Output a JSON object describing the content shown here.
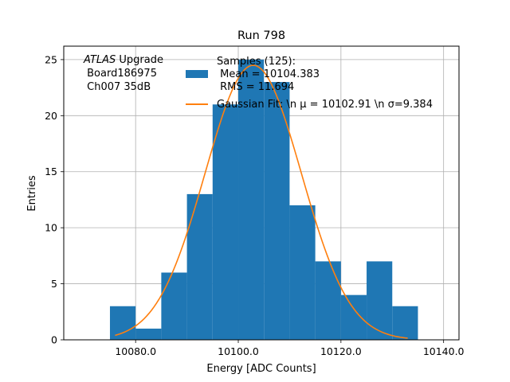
{
  "chart_data": {
    "type": "bar",
    "title": "Run 798",
    "xlabel": "Energy [ADC Counts]",
    "ylabel": "Entries",
    "xlim": [
      10066,
      10143
    ],
    "ylim": [
      0,
      26.2
    ],
    "xticks": [
      10080,
      10100,
      10120,
      10140
    ],
    "xtick_labels": [
      "10080.0",
      "10100.0",
      "10120.0",
      "10140.0"
    ],
    "yticks": [
      0,
      5,
      10,
      15,
      20,
      25
    ],
    "ytick_labels": [
      "0",
      "5",
      "10",
      "15",
      "20",
      "25"
    ],
    "grid": true,
    "legend_position": "top-right",
    "histogram": {
      "bin_edges": [
        10075,
        10080,
        10085,
        10090,
        10095,
        10100,
        10105,
        10110,
        10115,
        10120,
        10125,
        10130,
        10135
      ],
      "counts": [
        3,
        1,
        6,
        13,
        21,
        25,
        23,
        12,
        7,
        4,
        7,
        3
      ],
      "color": "#1f77b4"
    },
    "fit": {
      "mu": 10102.91,
      "sigma": 9.384,
      "amplitude": 24.5,
      "x_range": [
        10076,
        10133
      ],
      "color": "#ff7f0e"
    },
    "legend": {
      "samples_line1": "Samples (125):",
      "samples_line2": " Mean = 10104.383",
      "samples_line3": " RMS = 11.694",
      "fit_label": "Gaussian Fit: \\n μ = 10102.91 \\n σ=9.384"
    },
    "annotation": {
      "line1_italic": "ATLAS",
      "line1_rest": " Upgrade",
      "line2": " Board186975",
      "line3": " Ch007 35dB"
    }
  }
}
